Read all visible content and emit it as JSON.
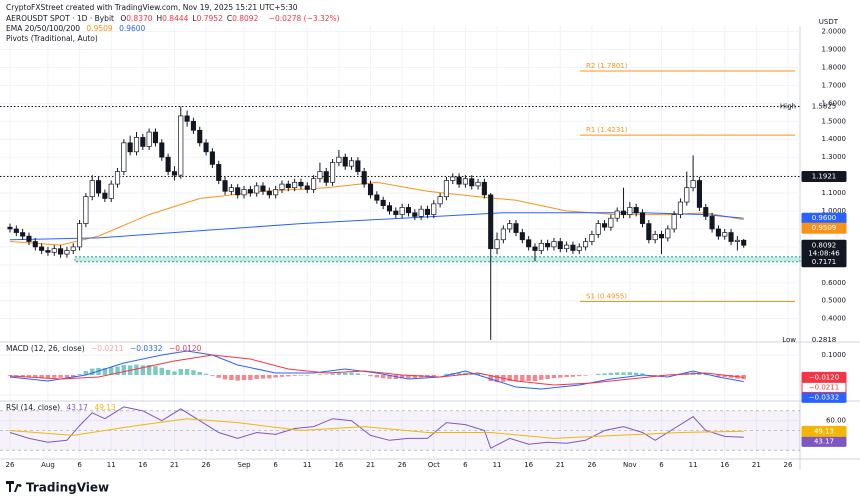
{
  "header": {
    "credit": "CryptoFXStreet created with TradingView.com, Nov 19, 2025 15:21 UTC+5:30",
    "ohlc": [
      {
        "key": "O",
        "value": "0.8370"
      },
      {
        "key": "H",
        "value": "0.8444"
      },
      {
        "key": "L",
        "value": "0.7952"
      },
      {
        "key": "C",
        "value": "0.8092"
      }
    ],
    "change": "−0.0278 (−3.32%)",
    "ema_title": "EMA 20/50/100/200",
    "pivots_title": "Pivots (Traditional, Auto)"
  },
  "chart_data": [
    {
      "type": "candlestick",
      "title": "AEROUSDT SPOT · 1D · Bybit",
      "currency": "USDT",
      "up_color": "#ffffff",
      "down_color": "#131722",
      "grid": true,
      "ylim": [
        0.27,
        2.02
      ],
      "yticks": [
        {
          "value": 0.4,
          "label": "0.4000"
        },
        {
          "value": 0.5,
          "label": "0.5000"
        },
        {
          "value": 0.6,
          "label": "0.6000"
        },
        {
          "value": 0.7,
          "label": "0.7000"
        },
        {
          "value": 0.8,
          "label": "0.8000"
        },
        {
          "value": 0.9,
          "label": "0.9000"
        },
        {
          "value": 1.0,
          "label": "1.0000"
        },
        {
          "value": 1.1,
          "label": "1.1000"
        },
        {
          "value": 1.2,
          "label": "1.2000"
        },
        {
          "value": 1.3,
          "label": "1.3000"
        },
        {
          "value": 1.4,
          "label": "1.4000"
        },
        {
          "value": 1.5,
          "label": "1.5000"
        },
        {
          "value": 1.6,
          "label": "1.6000"
        },
        {
          "value": 1.7,
          "label": "1.7000"
        },
        {
          "value": 1.8,
          "label": "1.8000"
        },
        {
          "value": 1.9,
          "label": "1.9000"
        },
        {
          "value": 2.0,
          "label": "2.0000"
        }
      ],
      "open": [
        0.91,
        0.9,
        0.88,
        0.86,
        0.83,
        0.8,
        0.78,
        0.77,
        0.79,
        0.76,
        0.78,
        0.8,
        0.93,
        1.08,
        1.17,
        1.1,
        1.07,
        1.15,
        1.22,
        1.38,
        1.33,
        1.41,
        1.36,
        1.44,
        1.38,
        1.3,
        1.22,
        1.2,
        1.53,
        1.5,
        1.45,
        1.38,
        1.33,
        1.26,
        1.17,
        1.11,
        1.13,
        1.09,
        1.12,
        1.1,
        1.14,
        1.11,
        1.09,
        1.12,
        1.15,
        1.13,
        1.16,
        1.14,
        1.12,
        1.18,
        1.22,
        1.16,
        1.27,
        1.3,
        1.25,
        1.28,
        1.22,
        1.15,
        1.09,
        1.06,
        1.03,
        1.0,
        0.98,
        1.02,
        0.99,
        0.97,
        1.01,
        0.98,
        1.04,
        1.08,
        1.17,
        1.19,
        1.15,
        1.18,
        1.14,
        1.16,
        1.09,
        0.79,
        0.84,
        0.9,
        0.93,
        0.88,
        0.84,
        0.8,
        0.78,
        0.82,
        0.8,
        0.83,
        0.79,
        0.81,
        0.78,
        0.8,
        0.83,
        0.87,
        0.93,
        0.91,
        0.96,
        1.0,
        0.98,
        1.02,
        0.99,
        0.93,
        0.84,
        0.87,
        0.85,
        0.9,
        0.98,
        1.05,
        1.13,
        1.17,
        1.02,
        0.97,
        0.9,
        0.86,
        0.88,
        0.83,
        0.837
      ],
      "high": [
        0.93,
        0.92,
        0.9,
        0.88,
        0.85,
        0.82,
        0.8,
        0.81,
        0.81,
        0.8,
        0.82,
        0.95,
        1.1,
        1.2,
        1.19,
        1.12,
        1.17,
        1.24,
        1.4,
        1.42,
        1.44,
        1.43,
        1.46,
        1.46,
        1.4,
        1.32,
        1.25,
        1.5825,
        1.56,
        1.52,
        1.47,
        1.4,
        1.35,
        1.28,
        1.19,
        1.15,
        1.15,
        1.14,
        1.14,
        1.16,
        1.16,
        1.13,
        1.14,
        1.17,
        1.17,
        1.18,
        1.18,
        1.16,
        1.2,
        1.27,
        1.24,
        1.29,
        1.34,
        1.32,
        1.3,
        1.3,
        1.24,
        1.17,
        1.11,
        1.08,
        1.05,
        1.02,
        1.04,
        1.04,
        1.01,
        1.03,
        1.03,
        1.06,
        1.1,
        1.19,
        1.21,
        1.21,
        1.2,
        1.2,
        1.18,
        1.18,
        1.1,
        0.88,
        0.92,
        0.95,
        0.95,
        0.9,
        0.86,
        0.82,
        0.84,
        0.84,
        0.85,
        0.85,
        0.83,
        0.83,
        0.82,
        0.85,
        0.89,
        0.95,
        0.95,
        0.98,
        1.02,
        1.13,
        1.05,
        1.04,
        1.01,
        0.95,
        0.89,
        0.89,
        0.92,
        1.0,
        1.07,
        1.22,
        1.31,
        1.19,
        1.04,
        0.99,
        0.92,
        0.9,
        0.9,
        0.86,
        0.8444
      ],
      "low": [
        0.88,
        0.86,
        0.84,
        0.81,
        0.78,
        0.76,
        0.75,
        0.75,
        0.74,
        0.74,
        0.76,
        0.78,
        0.91,
        1.06,
        1.08,
        1.05,
        1.05,
        1.13,
        1.2,
        1.31,
        1.31,
        1.34,
        1.34,
        1.36,
        1.28,
        1.2,
        1.17,
        1.18,
        1.47,
        1.43,
        1.36,
        1.31,
        1.24,
        1.15,
        1.09,
        1.09,
        1.07,
        1.07,
        1.08,
        1.08,
        1.09,
        1.07,
        1.07,
        1.1,
        1.11,
        1.11,
        1.12,
        1.1,
        1.1,
        1.16,
        1.14,
        1.14,
        1.25,
        1.23,
        1.23,
        1.2,
        1.13,
        1.07,
        1.04,
        1.01,
        0.98,
        0.96,
        0.96,
        0.97,
        0.95,
        0.95,
        0.96,
        0.96,
        1.02,
        1.06,
        1.15,
        1.13,
        1.13,
        1.12,
        1.12,
        1.07,
        0.2818,
        0.76,
        0.82,
        0.88,
        0.86,
        0.82,
        0.78,
        0.72,
        0.76,
        0.78,
        0.78,
        0.77,
        0.77,
        0.76,
        0.76,
        0.78,
        0.81,
        0.85,
        0.89,
        0.89,
        0.94,
        0.96,
        0.96,
        0.97,
        0.91,
        0.82,
        0.82,
        0.76,
        0.83,
        0.88,
        0.96,
        1.03,
        1.11,
        1.0,
        0.95,
        0.88,
        0.84,
        0.84,
        0.81,
        0.78,
        0.7952
      ],
      "close": [
        0.9,
        0.88,
        0.86,
        0.83,
        0.8,
        0.78,
        0.77,
        0.79,
        0.76,
        0.78,
        0.8,
        0.93,
        1.08,
        1.17,
        1.1,
        1.07,
        1.15,
        1.22,
        1.38,
        1.33,
        1.41,
        1.36,
        1.44,
        1.38,
        1.3,
        1.22,
        1.2,
        1.53,
        1.5,
        1.45,
        1.38,
        1.33,
        1.26,
        1.17,
        1.11,
        1.13,
        1.09,
        1.12,
        1.1,
        1.14,
        1.11,
        1.09,
        1.12,
        1.15,
        1.13,
        1.16,
        1.14,
        1.12,
        1.18,
        1.22,
        1.16,
        1.27,
        1.3,
        1.25,
        1.28,
        1.22,
        1.15,
        1.09,
        1.06,
        1.03,
        1.0,
        0.98,
        1.02,
        0.99,
        0.97,
        1.01,
        0.98,
        1.04,
        1.08,
        1.17,
        1.19,
        1.15,
        1.18,
        1.14,
        1.16,
        1.09,
        0.79,
        0.84,
        0.9,
        0.93,
        0.88,
        0.84,
        0.8,
        0.78,
        0.82,
        0.8,
        0.83,
        0.79,
        0.81,
        0.78,
        0.8,
        0.83,
        0.87,
        0.93,
        0.91,
        0.96,
        1.0,
        0.98,
        1.02,
        0.99,
        0.93,
        0.84,
        0.87,
        0.85,
        0.9,
        0.98,
        1.05,
        1.13,
        1.17,
        1.02,
        0.97,
        0.9,
        0.86,
        0.88,
        0.83,
        0.837,
        0.8092
      ],
      "overlays": [
        {
          "color": "#f7931a",
          "x": [
            0,
            8,
            14,
            22,
            30,
            40,
            50,
            58,
            66,
            74,
            80,
            88,
            96,
            104,
            110,
            116
          ],
          "values": [
            0.83,
            0.81,
            0.86,
            0.98,
            1.07,
            1.11,
            1.13,
            1.16,
            1.11,
            1.08,
            1.06,
            1.0,
            0.98,
            0.98,
            0.99,
            0.9509
          ],
          "last_label": "0.9509"
        },
        {
          "color": "#2962ff",
          "x": [
            0,
            14,
            30,
            46,
            62,
            78,
            90,
            100,
            110,
            116
          ],
          "values": [
            0.84,
            0.85,
            0.89,
            0.93,
            0.96,
            0.99,
            0.99,
            0.99,
            0.98,
            0.96
          ],
          "last_label": "0.9600"
        }
      ],
      "zone": {
        "low": 0.7171,
        "high": 0.745,
        "color": "#26a69a"
      },
      "levels": [
        1.5825,
        1.1921
      ],
      "pivots": {
        "color": "#f7931a",
        "items": [
          {
            "value": 1.7801,
            "label": "R2 (1.7801)"
          },
          {
            "value": 1.4231,
            "label": "R1 (1.4231)"
          },
          {
            "value": 0.4955,
            "label": "S1 (0.4955)"
          }
        ]
      },
      "markers": [
        {
          "value": 1.5825,
          "label": "1.5825",
          "tag": "High"
        },
        {
          "value": 1.1921,
          "label": "1.1921",
          "bg": "#131722"
        },
        {
          "value": 0.96,
          "label": "0.9600",
          "bg": "#2962ff"
        },
        {
          "value": 0.9509,
          "label": "0.9509",
          "bg": "#f7931a"
        },
        {
          "value": 0.8092,
          "label": "0.8092",
          "sub": "14:08:46",
          "bg": "#131722"
        },
        {
          "value": 0.7171,
          "label": "0.7171",
          "bg": "#131722"
        },
        {
          "value": 0.2818,
          "label": "0.2818",
          "tag": "Low"
        }
      ]
    },
    {
      "type": "macd",
      "title": "MACD (12, 26, close)",
      "ylim": [
        -0.125,
        0.16
      ],
      "yticks": [
        {
          "value": 0.1,
          "label": "0.1000"
        },
        {
          "value": -0.1,
          "label": "−0.1000"
        }
      ],
      "histogram": {
        "pos_color": "#26a69a",
        "neg_color": "#f23645",
        "last_label": "−0.0211",
        "label_bg": "#ffffff",
        "label_fg": "#f23645",
        "values": [
          -0.004,
          -0.006,
          -0.008,
          -0.01,
          -0.012,
          -0.014,
          -0.015,
          -0.014,
          -0.014,
          -0.012,
          -0.01,
          0.005,
          0.02,
          0.032,
          0.035,
          0.034,
          0.038,
          0.042,
          0.05,
          0.048,
          0.052,
          0.048,
          0.05,
          0.044,
          0.036,
          0.026,
          0.018,
          0.03,
          0.03,
          0.024,
          0.015,
          0.006,
          -0.004,
          -0.014,
          -0.022,
          -0.025,
          -0.028,
          -0.026,
          -0.025,
          -0.02,
          -0.018,
          -0.017,
          -0.013,
          -0.009,
          -0.007,
          -0.004,
          -0.003,
          -0.003,
          0.0,
          0.004,
          0.002,
          0.008,
          0.012,
          0.011,
          0.012,
          0.008,
          0.002,
          -0.006,
          -0.012,
          -0.016,
          -0.019,
          -0.02,
          -0.017,
          -0.016,
          -0.015,
          -0.012,
          -0.011,
          -0.006,
          -0.001,
          0.006,
          0.01,
          0.01,
          0.011,
          0.009,
          0.009,
          0.005,
          -0.03,
          -0.036,
          -0.034,
          -0.03,
          -0.03,
          -0.03,
          -0.03,
          -0.03,
          -0.024,
          -0.02,
          -0.015,
          -0.013,
          -0.01,
          -0.009,
          -0.006,
          -0.003,
          0.001,
          0.006,
          0.008,
          0.011,
          0.013,
          0.013,
          0.014,
          0.012,
          0.008,
          0.0,
          -0.002,
          -0.004,
          -0.002,
          0.003,
          0.008,
          0.012,
          0.014,
          0.008,
          0.004,
          -0.002,
          -0.008,
          -0.01,
          -0.014,
          -0.018,
          -0.0211
        ]
      },
      "lines": [
        {
          "color": "#2962ff",
          "x": [
            0,
            6,
            12,
            18,
            24,
            28,
            32,
            36,
            42,
            48,
            53,
            58,
            63,
            68,
            72,
            76,
            80,
            84,
            90,
            95,
            100,
            104,
            108,
            112,
            116
          ],
          "values": [
            -0.01,
            -0.03,
            0.0,
            0.06,
            0.1,
            0.12,
            0.1,
            0.05,
            0.01,
            0.01,
            0.03,
            0.01,
            -0.02,
            -0.01,
            0.02,
            -0.02,
            -0.06,
            -0.07,
            -0.05,
            -0.02,
            0.0,
            -0.01,
            0.02,
            -0.01,
            -0.0332
          ],
          "last_label": "−0.0332"
        },
        {
          "color": "#f23645",
          "x": [
            0,
            8,
            14,
            20,
            26,
            32,
            38,
            44,
            50,
            56,
            62,
            68,
            74,
            80,
            86,
            92,
            98,
            104,
            110,
            116
          ],
          "values": [
            -0.005,
            -0.02,
            -0.01,
            0.03,
            0.07,
            0.1,
            0.08,
            0.03,
            0.01,
            0.02,
            0.0,
            -0.01,
            0.01,
            -0.03,
            -0.05,
            -0.04,
            -0.02,
            0.0,
            0.01,
            -0.012
          ],
          "last_label": "−0.0120"
        }
      ]
    },
    {
      "type": "line",
      "title": "RSI (14, close)",
      "ylim": [
        22,
        79
      ],
      "yticks": [
        {
          "value": 60,
          "label": "60.00"
        }
      ],
      "band": {
        "levels": [
          70,
          50,
          30
        ],
        "color": "#7e57c2"
      },
      "xlim": [
        -1.58,
        124.9
      ],
      "xticks": [
        {
          "value": 0,
          "label": "26"
        },
        {
          "value": 6,
          "label": "Aug"
        },
        {
          "value": 11,
          "label": "6"
        },
        {
          "value": 16,
          "label": "11"
        },
        {
          "value": 21,
          "label": "16"
        },
        {
          "value": 26,
          "label": "21"
        },
        {
          "value": 31,
          "label": "26"
        },
        {
          "value": 37,
          "label": "Sep"
        },
        {
          "value": 42,
          "label": "6"
        },
        {
          "value": 47,
          "label": "11"
        },
        {
          "value": 52,
          "label": "16"
        },
        {
          "value": 57,
          "label": "21"
        },
        {
          "value": 62,
          "label": "26"
        },
        {
          "value": 67,
          "label": "Oct"
        },
        {
          "value": 72,
          "label": "6"
        },
        {
          "value": 77,
          "label": "11"
        },
        {
          "value": 82,
          "label": "16"
        },
        {
          "value": 87,
          "label": "21"
        },
        {
          "value": 92,
          "label": "26"
        },
        {
          "value": 98,
          "label": "Nov"
        },
        {
          "value": 103,
          "label": "6"
        },
        {
          "value": 108,
          "label": "11"
        },
        {
          "value": 113,
          "label": "16"
        },
        {
          "value": 118,
          "label": "21"
        },
        {
          "value": 123,
          "label": "26"
        }
      ],
      "series": [
        {
          "color": "#7e57c2",
          "x": [
            0,
            3,
            6,
            9,
            11,
            13,
            15,
            18,
            21,
            24,
            27,
            30,
            33,
            36,
            39,
            42,
            45,
            48,
            51,
            54,
            57,
            60,
            63,
            66,
            69,
            72,
            75,
            76,
            79,
            82,
            85,
            88,
            91,
            94,
            97,
            100,
            102,
            105,
            108,
            110,
            113,
            116
          ],
          "values": [
            48,
            42,
            38,
            40,
            55,
            68,
            62,
            74,
            70,
            60,
            72,
            60,
            48,
            42,
            48,
            46,
            52,
            54,
            62,
            60,
            45,
            40,
            42,
            42,
            58,
            56,
            50,
            32,
            42,
            36,
            38,
            37,
            40,
            50,
            54,
            48,
            40,
            52,
            64,
            50,
            44,
            43.17
          ],
          "last_label": "43.17"
        },
        {
          "color": "#f2b705",
          "x": [
            0,
            10,
            20,
            28,
            36,
            46,
            56,
            66,
            76,
            86,
            96,
            106,
            116
          ],
          "values": [
            50,
            45,
            55,
            62,
            58,
            50,
            54,
            48,
            48,
            42,
            45,
            48,
            49.13
          ],
          "last_label": "49.13"
        }
      ]
    }
  ],
  "footer": {
    "brand": "TradingView"
  }
}
